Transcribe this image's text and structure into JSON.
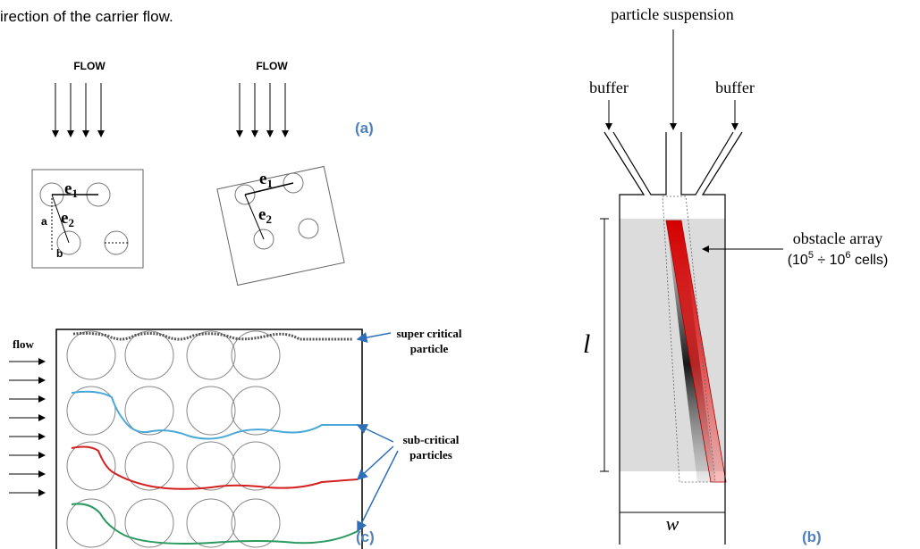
{
  "caption_fragment": "irection of the carrier flow.",
  "panel_a": {
    "left": {
      "flow": "FLOW",
      "e1": {
        "base": "e",
        "sub": "1"
      },
      "e2": {
        "base": "e",
        "sub": "2"
      },
      "a": "a",
      "b": "b"
    },
    "right": {
      "flow": "FLOW",
      "e1": {
        "base": "e",
        "sub": "1"
      },
      "e2": {
        "base": "e",
        "sub": "2"
      }
    },
    "label": "(a)"
  },
  "panel_c": {
    "flow": "flow",
    "super_critical": [
      "super critical",
      "particle"
    ],
    "sub_critical": [
      "sub-critical",
      "particles"
    ],
    "label": "(c)"
  },
  "panel_b": {
    "inlet": "particle suspension",
    "buffer_left": "buffer",
    "buffer_right": "buffer",
    "obstacle": {
      "line1": "obstacle array",
      "line2": [
        "(10",
        "5",
        " ÷ 10",
        "6",
        " cells)"
      ]
    },
    "length": "l",
    "width": "w",
    "label": "(b)"
  }
}
